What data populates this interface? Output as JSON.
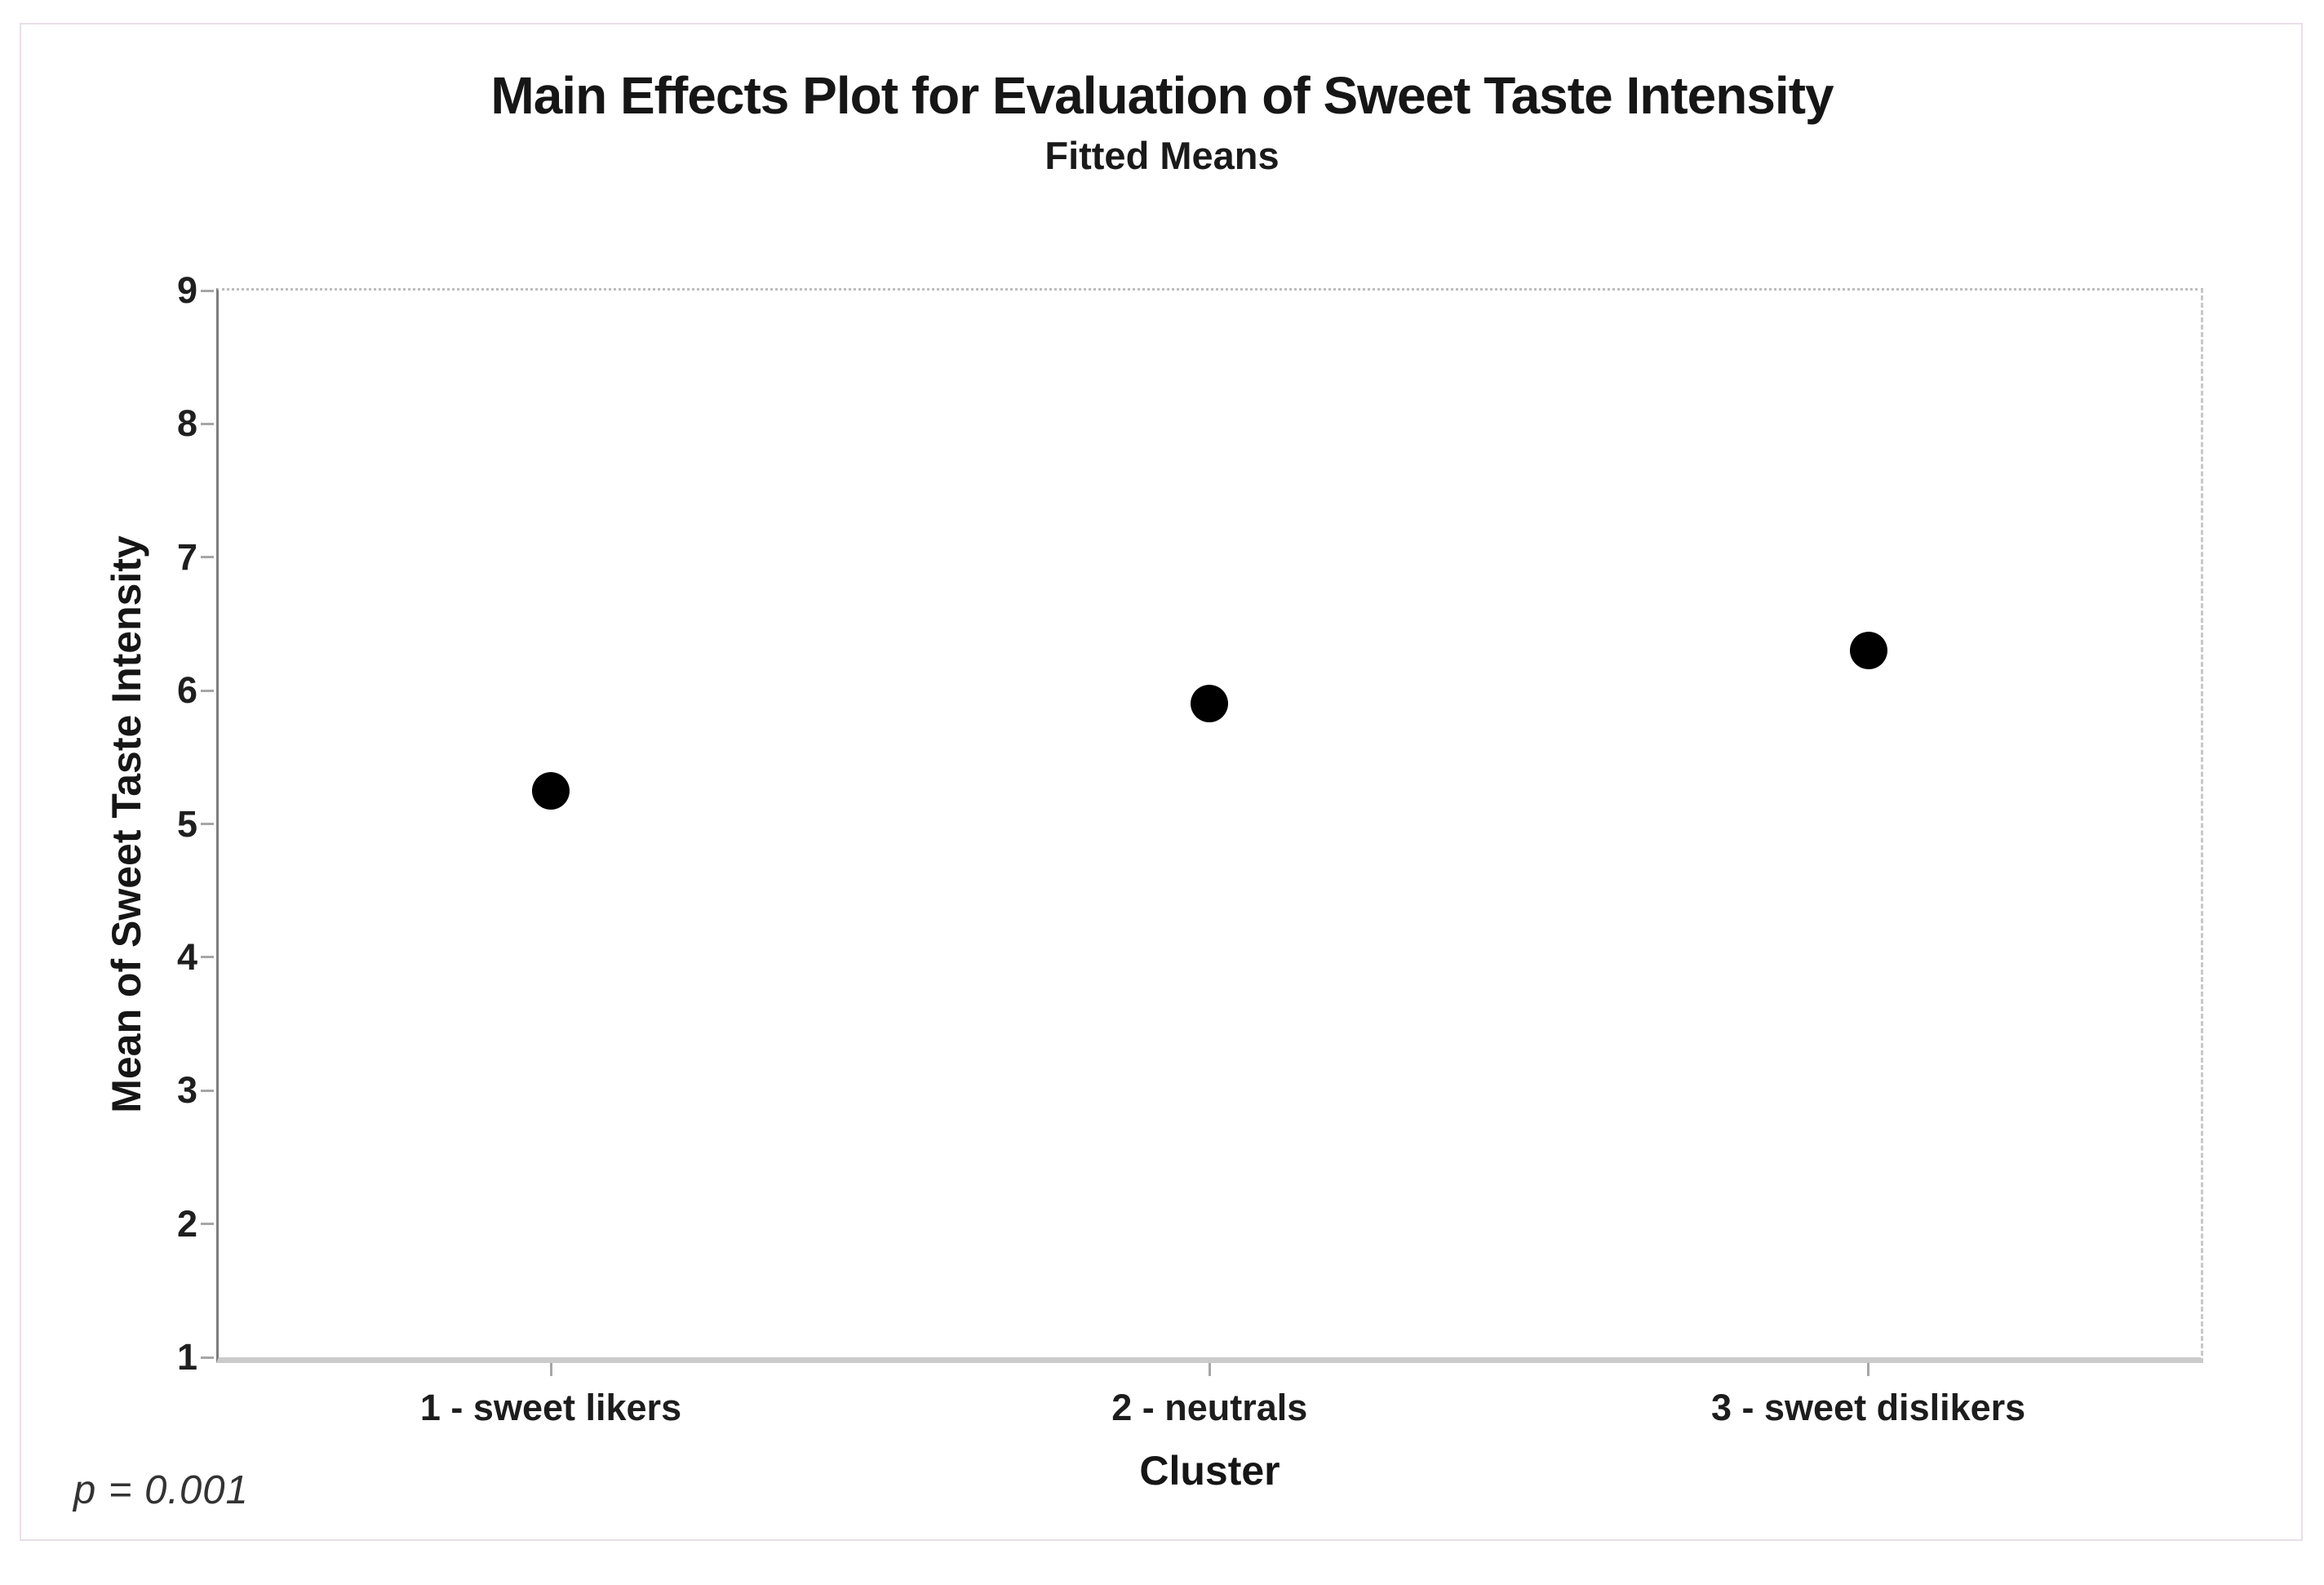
{
  "figure": {
    "background": "#ffffff",
    "frame_color": "#e9dfe8",
    "text_color": "#161616",
    "axis_line_color": "#7d7d7d",
    "bottom_axis_color": "#cbcbcb",
    "annotation": "p = 0.001"
  },
  "chart_data": {
    "type": "scatter",
    "title": "Main Effects Plot for Evaluation of Sweet Taste Intensity",
    "subtitle": "Fitted Means",
    "xlabel": "Cluster",
    "ylabel": "Mean of Sweet Taste Intensity",
    "categories": [
      "1 - sweet likers",
      "2 - neutrals",
      "3 - sweet dislikers"
    ],
    "values": [
      5.25,
      5.9,
      6.3
    ],
    "ylim": [
      1,
      9
    ],
    "yticks": [
      1,
      2,
      3,
      4,
      5,
      6,
      7,
      8,
      9
    ],
    "grid": false,
    "legend": "none",
    "marker_color": "#000000",
    "annotation": "p = 0.001"
  }
}
